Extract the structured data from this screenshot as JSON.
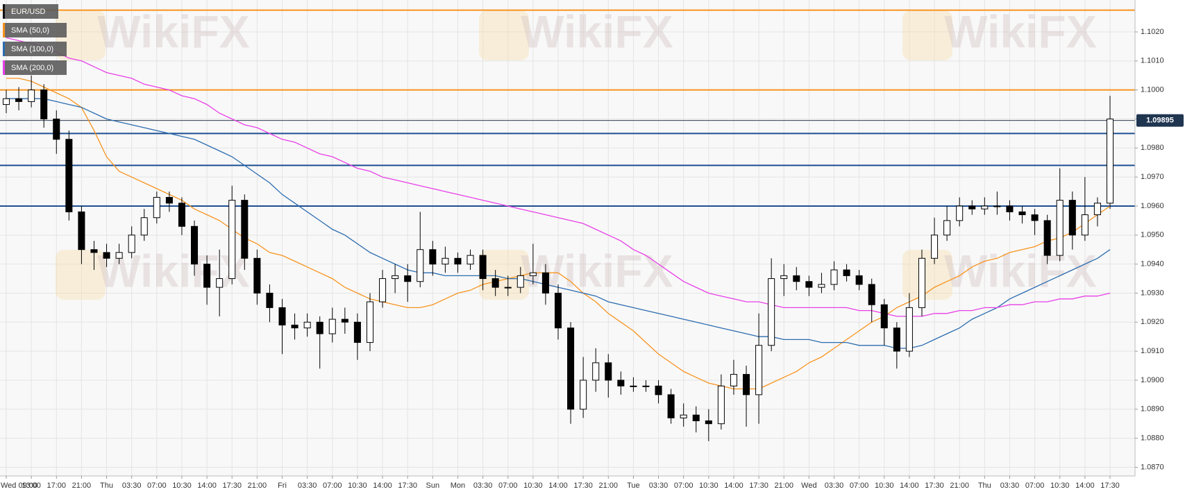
{
  "chart_data": {
    "type": "candlestick",
    "watermark": "WikiFX",
    "categories": [
      "Wed 09:00",
      null,
      "13:00",
      null,
      "17:00",
      null,
      "21:00",
      null,
      "Thu",
      null,
      "03:30",
      null,
      "07:00",
      null,
      "10:30",
      null,
      "14:00",
      null,
      "17:30",
      null,
      "21:00",
      null,
      "Fri",
      null,
      "03:30",
      null,
      "07:00",
      null,
      "10:30",
      null,
      "14:00",
      null,
      "17:30",
      null,
      "Sun",
      null,
      "Mon",
      null,
      "03:30",
      null,
      "07:00",
      null,
      "10:30",
      null,
      "14:00",
      null,
      "17:30",
      null,
      "21:00",
      null,
      "Tue",
      null,
      "03:30",
      null,
      "07:00",
      null,
      "10:30",
      null,
      "14:00",
      null,
      "17:30",
      null,
      "21:00",
      null,
      "Wed",
      null,
      "03:30",
      null,
      "07:00",
      null,
      "10:30",
      null,
      "14:00",
      null,
      "17:30",
      null,
      "21:00",
      null,
      "Thu",
      null,
      "03:30",
      null,
      "07:00",
      null,
      "10:30",
      null,
      "14:00",
      null,
      "17:30"
    ],
    "series": [
      {
        "name": "EUR/USD",
        "type": "candlestick",
        "color": "#000000",
        "up_color": "#ffffff",
        "down_color": "#000000",
        "open": [
          1.0995,
          1.0997,
          1.0996,
          1.1,
          1.099,
          1.0983,
          1.0958,
          1.0945,
          1.0944,
          1.0942,
          1.0944,
          1.095,
          1.0956,
          1.0963,
          1.0961,
          1.0953,
          1.094,
          1.0932,
          1.0935,
          1.0962,
          1.0942,
          1.093,
          1.0925,
          1.0919,
          1.0918,
          1.092,
          1.0916,
          1.0921,
          1.092,
          1.0913,
          1.0927,
          1.0935,
          1.0936,
          1.0934,
          1.0945,
          1.094,
          1.0942,
          1.094,
          1.0943,
          1.0935,
          1.0932,
          1.0932,
          1.0936,
          1.0937,
          1.093,
          1.0918,
          1.089,
          1.09,
          1.0906,
          1.09,
          1.0898,
          1.0898,
          1.0898,
          1.0895,
          1.0887,
          1.0888,
          1.0886,
          1.0885,
          1.0898,
          1.0902,
          1.0895,
          1.0912,
          1.0935,
          1.0936,
          1.0934,
          1.0932,
          1.0933,
          1.0938,
          1.0936,
          1.0933,
          1.0926,
          1.0918,
          1.091,
          1.0925,
          1.0942,
          1.095,
          1.0955,
          1.096,
          1.0959,
          1.096,
          1.096,
          1.0958,
          1.0957,
          1.0955,
          1.0943,
          1.0962,
          1.095,
          1.0957,
          1.0961
        ],
        "high": [
          1.1,
          1.1001,
          1.1005,
          1.1002,
          1.0993,
          1.0986,
          1.096,
          1.0948,
          1.0947,
          1.0947,
          1.0953,
          1.0959,
          1.0965,
          1.0965,
          1.0963,
          1.0955,
          1.0943,
          1.0945,
          1.0967,
          1.0964,
          1.0945,
          1.0933,
          1.0928,
          1.0923,
          1.0923,
          1.0922,
          1.0925,
          1.0925,
          1.0923,
          1.093,
          1.0938,
          1.094,
          1.094,
          1.0958,
          1.0948,
          1.0946,
          1.0944,
          1.0945,
          1.0945,
          1.0938,
          1.0936,
          1.0939,
          1.0947,
          1.094,
          1.0933,
          1.092,
          1.0908,
          1.0911,
          1.0909,
          1.0903,
          1.0901,
          1.09,
          1.09,
          1.0897,
          1.0892,
          1.0891,
          1.089,
          1.0902,
          1.0907,
          1.0905,
          1.0923,
          1.0942,
          1.094,
          1.0939,
          1.0936,
          1.0937,
          1.0941,
          1.094,
          1.0938,
          1.0935,
          1.0928,
          1.092,
          1.093,
          1.0945,
          1.0956,
          1.096,
          1.0963,
          1.0962,
          1.0963,
          1.0965,
          1.0962,
          1.096,
          1.0959,
          1.0957,
          1.0973,
          1.0965,
          1.097,
          1.0963,
          1.0998
        ],
        "low": [
          1.0992,
          1.0993,
          1.0994,
          1.0987,
          1.0978,
          1.0955,
          1.094,
          1.0938,
          1.0939,
          1.094,
          1.0942,
          1.0948,
          1.0954,
          1.0958,
          1.095,
          1.0936,
          1.0926,
          1.0922,
          1.0933,
          1.0938,
          1.0926,
          1.092,
          1.0909,
          1.0914,
          1.0915,
          1.0904,
          1.0913,
          1.0916,
          1.0907,
          1.091,
          1.0925,
          1.093,
          1.0927,
          1.0932,
          1.0936,
          1.0937,
          1.0937,
          1.0938,
          1.0931,
          1.0929,
          1.0929,
          1.093,
          1.0933,
          1.0926,
          1.0914,
          1.0885,
          1.0887,
          1.0896,
          1.0894,
          1.0895,
          1.0896,
          1.0896,
          1.0892,
          1.0885,
          1.0884,
          1.0882,
          1.0879,
          1.0883,
          1.0895,
          1.0884,
          1.0885,
          1.091,
          1.0929,
          1.0931,
          1.0929,
          1.093,
          1.0931,
          1.0934,
          1.0931,
          1.092,
          1.0912,
          1.0904,
          1.0908,
          1.0922,
          1.094,
          1.0948,
          1.0953,
          1.0957,
          1.0957,
          1.0957,
          1.0955,
          1.0954,
          1.095,
          1.094,
          1.0941,
          1.0945,
          1.0948,
          1.0953,
          1.0959
        ],
        "close": [
          1.0997,
          1.0996,
          1.1,
          1.099,
          1.0983,
          1.0958,
          1.0945,
          1.0944,
          1.0942,
          1.0944,
          1.095,
          1.0956,
          1.0963,
          1.0961,
          1.0953,
          1.094,
          1.0932,
          1.0935,
          1.0962,
          1.0942,
          1.093,
          1.0925,
          1.0919,
          1.0918,
          1.092,
          1.0916,
          1.0921,
          1.092,
          1.0913,
          1.0927,
          1.0935,
          1.0936,
          1.0934,
          1.0945,
          1.094,
          1.0942,
          1.094,
          1.0943,
          1.0935,
          1.0932,
          1.0932,
          1.0936,
          1.0937,
          1.093,
          1.0918,
          1.089,
          1.09,
          1.0906,
          1.09,
          1.0898,
          1.0898,
          1.0898,
          1.0895,
          1.0887,
          1.0888,
          1.0886,
          1.0885,
          1.0898,
          1.0902,
          1.0895,
          1.0912,
          1.0935,
          1.0936,
          1.0934,
          1.0932,
          1.0933,
          1.0938,
          1.0936,
          1.0933,
          1.0926,
          1.0918,
          1.091,
          1.0925,
          1.0942,
          1.095,
          1.0955,
          1.096,
          1.0959,
          1.096,
          1.096,
          1.0958,
          1.0957,
          1.0955,
          1.0943,
          1.0962,
          1.095,
          1.0957,
          1.0961,
          1.099
        ]
      },
      {
        "name": "SMA (50,0)",
        "type": "line",
        "color": "#f7931e",
        "values": [
          1.1004,
          1.1004,
          1.1003,
          1.1001,
          1.0999,
          1.0997,
          1.0994,
          1.0986,
          1.0977,
          1.0972,
          1.097,
          1.0968,
          1.0966,
          1.0964,
          1.0962,
          1.0959,
          1.0957,
          1.0955,
          1.0952,
          1.0949,
          1.0947,
          1.0944,
          1.0943,
          1.0941,
          1.0939,
          1.0937,
          1.0935,
          1.0932,
          1.093,
          1.0928,
          1.0927,
          1.0926,
          1.0925,
          1.0925,
          1.0926,
          1.0928,
          1.093,
          1.0931,
          1.0933,
          1.0934,
          1.0935,
          1.0936,
          1.0937,
          1.0937,
          1.0937,
          1.0934,
          1.093,
          1.0927,
          1.0923,
          1.092,
          1.0917,
          1.0913,
          1.0909,
          1.0906,
          1.0903,
          1.0901,
          1.0899,
          1.0898,
          1.0897,
          1.0897,
          1.0897,
          1.0899,
          1.0901,
          1.0903,
          1.0906,
          1.0908,
          1.0911,
          1.0914,
          1.0917,
          1.092,
          1.0922,
          1.0925,
          1.0927,
          1.0929,
          1.0932,
          1.0934,
          1.0936,
          1.0939,
          1.0941,
          1.0942,
          1.0944,
          1.0945,
          1.0946,
          1.0948,
          1.0949,
          1.0951,
          1.0954,
          1.0957,
          1.096
        ]
      },
      {
        "name": "SMA (100,0)",
        "type": "line",
        "color": "#2b6cb0",
        "values": [
          1.0997,
          1.0997,
          1.0997,
          1.0997,
          1.0996,
          1.0995,
          1.0994,
          1.0992,
          1.099,
          1.0989,
          1.0988,
          1.0987,
          1.0986,
          1.0985,
          1.0984,
          1.0983,
          1.0981,
          1.0979,
          1.0977,
          1.0974,
          1.0971,
          1.0968,
          1.0964,
          1.0961,
          1.0958,
          1.0955,
          1.0952,
          1.095,
          1.0947,
          1.0944,
          1.0942,
          1.094,
          1.0938,
          1.0937,
          1.0937,
          1.0936,
          1.0936,
          1.0936,
          1.0936,
          1.0936,
          1.0935,
          1.0935,
          1.0934,
          1.0933,
          1.0932,
          1.0931,
          1.093,
          1.0929,
          1.0927,
          1.0926,
          1.0925,
          1.0924,
          1.0923,
          1.0922,
          1.0921,
          1.092,
          1.0919,
          1.0918,
          1.0917,
          1.0916,
          1.0915,
          1.0915,
          1.0914,
          1.0914,
          1.0914,
          1.0913,
          1.0913,
          1.0913,
          1.0912,
          1.0912,
          1.0912,
          1.0911,
          1.0911,
          1.0912,
          1.0914,
          1.0916,
          1.0918,
          1.0921,
          1.0923,
          1.0925,
          1.0928,
          1.093,
          1.0932,
          1.0934,
          1.0936,
          1.0938,
          1.094,
          1.0942,
          1.0945
        ]
      },
      {
        "name": "SMA (200,0)",
        "type": "line",
        "color": "#e83ee8",
        "values": [
          1.1018,
          1.1017,
          1.1016,
          1.1015,
          1.1013,
          1.1011,
          1.101,
          1.1008,
          1.1006,
          1.1005,
          1.1004,
          1.1002,
          1.1001,
          1.1,
          1.0998,
          1.0997,
          1.0995,
          1.0992,
          1.099,
          1.0988,
          1.0987,
          1.0985,
          1.0983,
          1.0982,
          1.098,
          1.0978,
          1.0977,
          1.0975,
          1.0973,
          1.0972,
          1.097,
          1.0969,
          1.0968,
          1.0967,
          1.0966,
          1.0965,
          1.0964,
          1.0963,
          1.0962,
          1.0961,
          1.096,
          1.0959,
          1.0958,
          1.0957,
          1.0956,
          1.0955,
          1.0954,
          1.0952,
          1.095,
          1.0948,
          1.0945,
          1.0943,
          1.094,
          1.0937,
          1.0934,
          1.0932,
          1.093,
          1.0929,
          1.0928,
          1.0927,
          1.0927,
          1.0926,
          1.0925,
          1.0925,
          1.0925,
          1.0925,
          1.0925,
          1.0925,
          1.0924,
          1.0924,
          1.0923,
          1.0922,
          1.0922,
          1.0922,
          1.0923,
          1.0923,
          1.0924,
          1.0924,
          1.0925,
          1.0925,
          1.0926,
          1.0926,
          1.0927,
          1.0927,
          1.0928,
          1.0928,
          1.0929,
          1.0929,
          1.093
        ]
      }
    ],
    "levels": [
      {
        "value": 1.10275,
        "color": "#f7931e"
      },
      {
        "value": 1.1,
        "color": "#f7931e"
      },
      {
        "value": 1.0985,
        "color": "#1d4f91"
      },
      {
        "value": 1.0974,
        "color": "#1d4f91"
      },
      {
        "value": 1.096,
        "color": "#1d4f91"
      }
    ],
    "last_price": 1.09895,
    "ylim": [
      1.0867,
      1.1031
    ],
    "yticks": [
      {
        "value": 1.087,
        "label": "1.0870"
      },
      {
        "value": 1.088,
        "label": "1.0880"
      },
      {
        "value": 1.089,
        "label": "1.0890"
      },
      {
        "value": 1.09,
        "label": "1.0900"
      },
      {
        "value": 1.091,
        "label": "1.0910"
      },
      {
        "value": 1.092,
        "label": "1.0920"
      },
      {
        "value": 1.093,
        "label": "1.0930"
      },
      {
        "value": 1.094,
        "label": "1.0940"
      },
      {
        "value": 1.095,
        "label": "1.0950"
      },
      {
        "value": 1.096,
        "label": "1.0960"
      },
      {
        "value": 1.097,
        "label": "1.0970"
      },
      {
        "value": 1.098,
        "label": "1.0980"
      },
      {
        "value": 1.099,
        "label": "1.0990"
      },
      {
        "value": 1.1,
        "label": "1.1000"
      },
      {
        "value": 1.101,
        "label": "1.1010"
      },
      {
        "value": 1.102,
        "label": "1.1020"
      }
    ],
    "grid": true
  }
}
